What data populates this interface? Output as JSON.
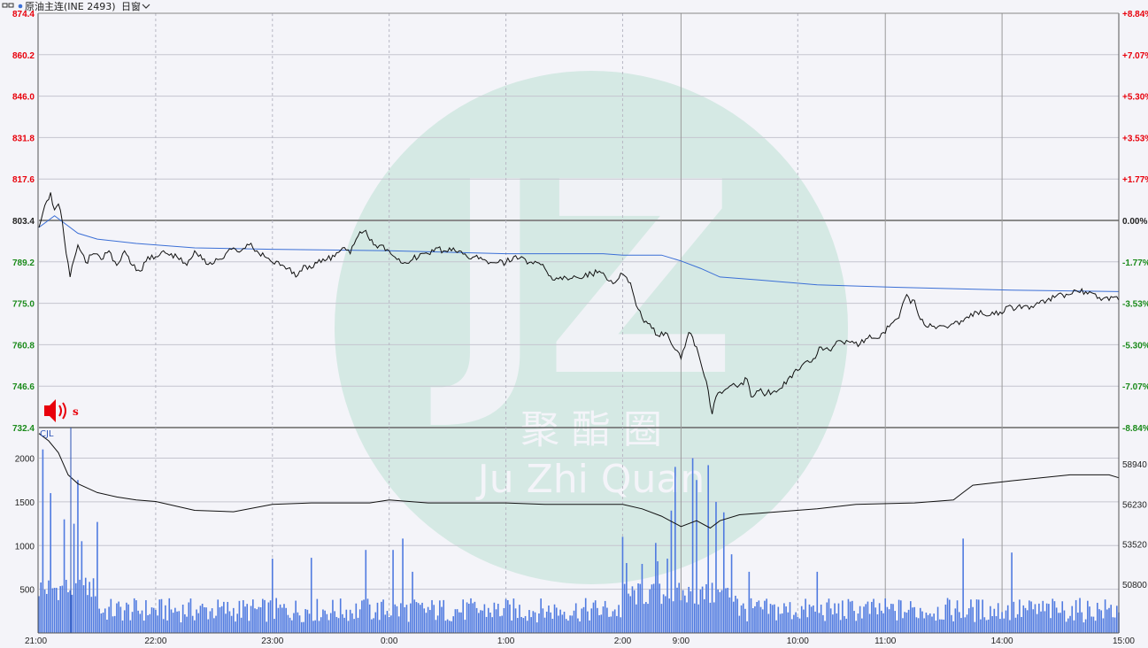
{
  "header": {
    "title": "原油主连(INE 2493)",
    "period": "日窗"
  },
  "watermark": {
    "logo": "JZ",
    "chinese": "聚 酯 圈",
    "english": "Ju Zhi Quan"
  },
  "colors": {
    "up": "#e8000b",
    "down": "#1a8a1a",
    "neutral": "#222222",
    "price_line": "#111111",
    "avg_line": "#3b6fd6",
    "volume": "#4f7ae0",
    "grid": "#c5c5cf",
    "watermark": "#cfe6e0"
  },
  "chart_data": [
    {
      "type": "line",
      "title": "",
      "prev_close": 803.4,
      "ylim": [
        732.4,
        874.4
      ],
      "price_ticks": [
        "874.4",
        "860.2",
        "846.0",
        "831.8",
        "817.6",
        "803.4",
        "789.2",
        "775.0",
        "760.8",
        "746.6",
        "732.4"
      ],
      "pct_ticks": [
        "+8.84%",
        "+7.07%",
        "+5.30%",
        "+3.53%",
        "+1.77%",
        "0.00%",
        "-1.77%",
        "-3.53%",
        "-5.30%",
        "-7.07%",
        "-8.84%"
      ],
      "x_ticks": [
        "21:00",
        "22:00",
        "23:00",
        "0:00",
        "1:00",
        "2:00",
        "9:00",
        "10:00",
        "11:00",
        "14:00",
        "15:00"
      ],
      "x_tick_index": [
        0,
        60,
        120,
        180,
        240,
        300,
        330,
        390,
        435,
        495,
        555
      ],
      "series": [
        {
          "points": [
            [
              0,
              801
            ],
            [
              2,
              806
            ],
            [
              4,
              810
            ],
            [
              6,
              813
            ],
            [
              8,
              807
            ],
            [
              10,
              809
            ],
            [
              12,
              803
            ],
            [
              14,
              792
            ],
            [
              16,
              784
            ],
            [
              18,
              790
            ],
            [
              20,
              795
            ],
            [
              24,
              789
            ],
            [
              28,
              792
            ],
            [
              32,
              790
            ],
            [
              36,
              793
            ],
            [
              40,
              788
            ],
            [
              44,
              793
            ],
            [
              48,
              788
            ],
            [
              52,
              786
            ],
            [
              56,
              791
            ],
            [
              60,
              791
            ],
            [
              64,
              793
            ],
            [
              68,
              792
            ],
            [
              72,
              790
            ],
            [
              76,
              788
            ],
            [
              80,
              793
            ],
            [
              84,
              790
            ],
            [
              88,
              789
            ],
            [
              92,
              790
            ],
            [
              96,
              792
            ],
            [
              100,
              794
            ],
            [
              104,
              793
            ],
            [
              108,
              795
            ],
            [
              112,
              793
            ],
            [
              116,
              791
            ],
            [
              120,
              789
            ],
            [
              124,
              788
            ],
            [
              128,
              787
            ],
            [
              132,
              784
            ],
            [
              136,
              788
            ],
            [
              140,
              787
            ],
            [
              144,
              790
            ],
            [
              148,
              790
            ],
            [
              152,
              791
            ],
            [
              156,
              794
            ],
            [
              160,
              792
            ],
            [
              164,
              798
            ],
            [
              168,
              800
            ],
            [
              172,
              795
            ],
            [
              176,
              795
            ],
            [
              180,
              793
            ],
            [
              184,
              790
            ],
            [
              188,
              789
            ],
            [
              192,
              790
            ],
            [
              196,
              792
            ],
            [
              200,
              792
            ],
            [
              204,
              794
            ],
            [
              208,
              793
            ],
            [
              212,
              793
            ],
            [
              216,
              793
            ],
            [
              220,
              791
            ],
            [
              224,
              791
            ],
            [
              228,
              790
            ],
            [
              232,
              789
            ],
            [
              236,
              789
            ],
            [
              240,
              789
            ],
            [
              244,
              791
            ],
            [
              248,
              791
            ],
            [
              252,
              789
            ],
            [
              256,
              789
            ],
            [
              260,
              787
            ],
            [
              264,
              783
            ],
            [
              268,
              784
            ],
            [
              272,
              783
            ],
            [
              276,
              784
            ],
            [
              280,
              784
            ],
            [
              284,
              785
            ],
            [
              288,
              786
            ],
            [
              292,
              783
            ],
            [
              296,
              782
            ],
            [
              300,
              785
            ],
            [
              304,
              782
            ],
            [
              306,
              777
            ],
            [
              308,
              773
            ],
            [
              310,
              770
            ],
            [
              314,
              768
            ],
            [
              318,
              764
            ],
            [
              322,
              765
            ],
            [
              326,
              760
            ],
            [
              330,
              756
            ],
            [
              332,
              760
            ],
            [
              334,
              765
            ],
            [
              338,
              760
            ],
            [
              340,
              755
            ],
            [
              342,
              750
            ],
            [
              344,
              745
            ],
            [
              346,
              737
            ],
            [
              348,
              743
            ],
            [
              352,
              745
            ],
            [
              356,
              747
            ],
            [
              360,
              747
            ],
            [
              364,
              749
            ],
            [
              366,
              743
            ],
            [
              370,
              745
            ],
            [
              374,
              744
            ],
            [
              378,
              745
            ],
            [
              382,
              746
            ],
            [
              386,
              750
            ],
            [
              390,
              752
            ],
            [
              394,
              755
            ],
            [
              398,
              756
            ],
            [
              402,
              760
            ],
            [
              406,
              759
            ],
            [
              410,
              762
            ],
            [
              414,
              761
            ],
            [
              418,
              762
            ],
            [
              422,
              761
            ],
            [
              426,
              763
            ],
            [
              430,
              763
            ],
            [
              434,
              765
            ],
            [
              438,
              768
            ],
            [
              442,
              770
            ],
            [
              444,
              775
            ],
            [
              446,
              778
            ],
            [
              448,
              775
            ],
            [
              450,
              776
            ],
            [
              452,
              771
            ],
            [
              456,
              767
            ],
            [
              458,
              768
            ],
            [
              462,
              767
            ],
            [
              466,
              767
            ],
            [
              470,
              768
            ],
            [
              474,
              769
            ],
            [
              478,
              770
            ],
            [
              482,
              772
            ],
            [
              486,
              771
            ],
            [
              490,
              772
            ],
            [
              494,
              772
            ],
            [
              498,
              774
            ],
            [
              502,
              773
            ],
            [
              506,
              774
            ],
            [
              510,
              774
            ],
            [
              514,
              775
            ],
            [
              518,
              776
            ],
            [
              522,
              777
            ],
            [
              526,
              778
            ],
            [
              530,
              778
            ],
            [
              534,
              779
            ],
            [
              538,
              779
            ],
            [
              540,
              779
            ],
            [
              545,
              777
            ],
            [
              548,
              777
            ],
            [
              552,
              777
            ],
            [
              555,
              776
            ]
          ]
        },
        {
          "points": [
            [
              0,
              801
            ],
            [
              8,
              805
            ],
            [
              14,
              802
            ],
            [
              20,
              799
            ],
            [
              30,
              797
            ],
            [
              50,
              795.5
            ],
            [
              80,
              794
            ],
            [
              120,
              793.5
            ],
            [
              180,
              793
            ],
            [
              240,
              792
            ],
            [
              290,
              792
            ],
            [
              300,
              791.5
            ],
            [
              320,
              791.5
            ],
            [
              330,
              789.5
            ],
            [
              340,
              787
            ],
            [
              350,
              784
            ],
            [
              370,
              783
            ],
            [
              400,
              781.3
            ],
            [
              440,
              780.5
            ],
            [
              470,
              780
            ],
            [
              500,
              779.5
            ],
            [
              555,
              779
            ]
          ]
        }
      ]
    },
    {
      "type": "bar",
      "title": "",
      "label": "CJL",
      "ylim": [
        0,
        2350
      ],
      "y_ticks": [
        "2000",
        "1500",
        "1000",
        "500"
      ],
      "y_tick_values": [
        2000,
        1500,
        1000,
        500
      ],
      "oi_ticks": [
        "58940",
        "56230",
        "53520",
        "50800"
      ],
      "oi_tick_values": [
        58940,
        56230,
        53520,
        50800
      ],
      "oi_ylim": [
        47500,
        61400
      ],
      "oi_series": [
        [
          0,
          61000
        ],
        [
          5,
          60500
        ],
        [
          10,
          59700
        ],
        [
          15,
          58200
        ],
        [
          20,
          57600
        ],
        [
          30,
          57000
        ],
        [
          40,
          56700
        ],
        [
          50,
          56500
        ],
        [
          60,
          56400
        ],
        [
          80,
          55800
        ],
        [
          100,
          55700
        ],
        [
          120,
          56200
        ],
        [
          140,
          56300
        ],
        [
          170,
          56300
        ],
        [
          180,
          56500
        ],
        [
          200,
          56300
        ],
        [
          240,
          56300
        ],
        [
          260,
          56200
        ],
        [
          300,
          56200
        ],
        [
          310,
          55900
        ],
        [
          320,
          55400
        ],
        [
          330,
          54700
        ],
        [
          338,
          55100
        ],
        [
          345,
          54600
        ],
        [
          350,
          55100
        ],
        [
          360,
          55500
        ],
        [
          380,
          55700
        ],
        [
          400,
          55900
        ],
        [
          420,
          56200
        ],
        [
          450,
          56300
        ],
        [
          470,
          56500
        ],
        [
          475,
          57000
        ],
        [
          480,
          57500
        ],
        [
          500,
          57800
        ],
        [
          530,
          58200
        ],
        [
          550,
          58200
        ],
        [
          555,
          58000
        ]
      ],
      "volume_highlights": [
        [
          2,
          2100
        ],
        [
          6,
          1600
        ],
        [
          13,
          1300
        ],
        [
          18,
          1250
        ],
        [
          20,
          1750
        ],
        [
          22,
          1050
        ],
        [
          30,
          1270
        ],
        [
          120,
          850
        ],
        [
          140,
          860
        ],
        [
          168,
          950
        ],
        [
          182,
          950
        ],
        [
          187,
          1080
        ],
        [
          192,
          700
        ],
        [
          300,
          1100
        ],
        [
          302,
          800
        ],
        [
          310,
          790
        ],
        [
          317,
          1030
        ],
        [
          318,
          820
        ],
        [
          323,
          850
        ],
        [
          325,
          1400
        ],
        [
          327,
          1900
        ],
        [
          336,
          2000
        ],
        [
          338,
          1750
        ],
        [
          344,
          1920
        ],
        [
          348,
          1500
        ],
        [
          352,
          1380
        ],
        [
          356,
          900
        ],
        [
          365,
          700
        ],
        [
          400,
          700
        ],
        [
          475,
          1080
        ],
        [
          500,
          920
        ]
      ]
    }
  ]
}
